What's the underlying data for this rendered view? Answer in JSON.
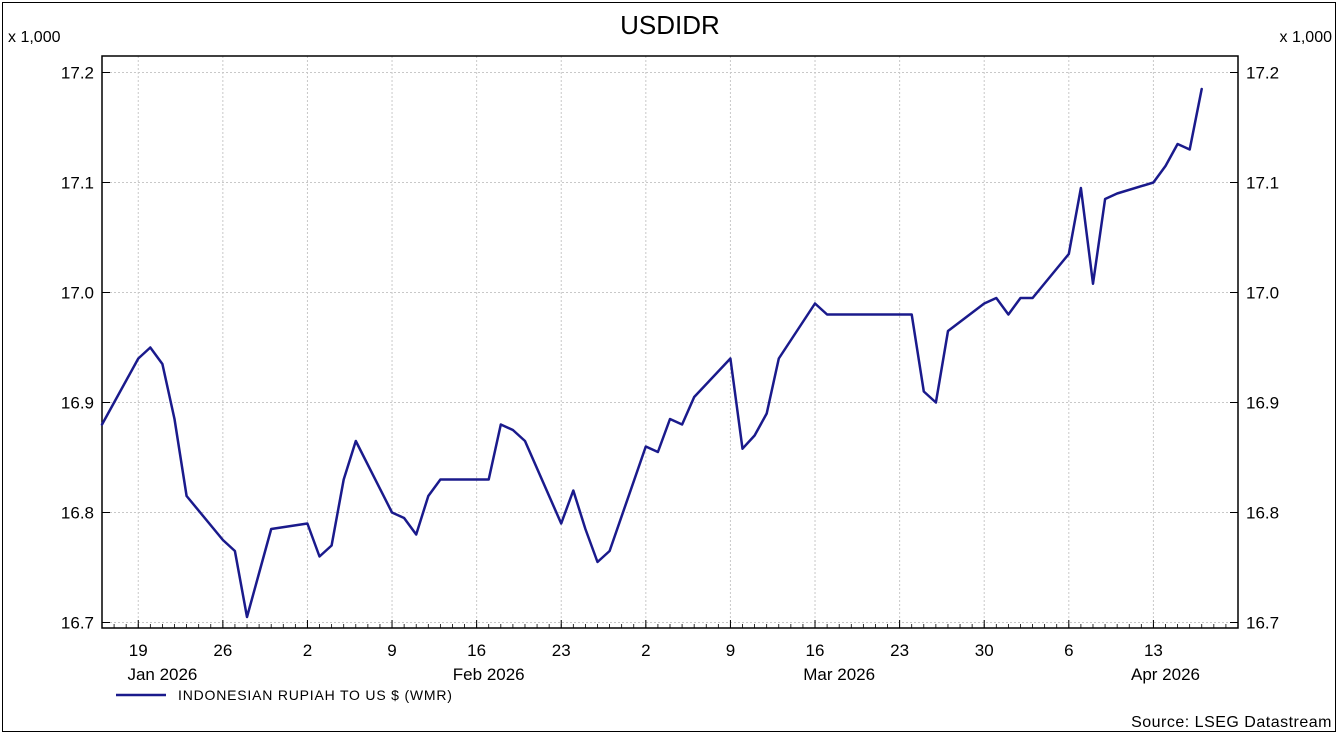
{
  "chart_data": {
    "type": "line",
    "title": "USDIDR",
    "y_multiplier_label": "x 1,000",
    "ylim": [
      16.695,
      17.215
    ],
    "y_ticks": [
      "16.7",
      "16.8",
      "16.9",
      "17.0",
      "17.1",
      "17.2"
    ],
    "x_range": [
      "2026-01-16",
      "2026-04-20"
    ],
    "x_ticks": [
      {
        "date": "2026-01-19",
        "label": "19"
      },
      {
        "date": "2026-01-26",
        "label": "26"
      },
      {
        "date": "2026-02-02",
        "label": "2"
      },
      {
        "date": "2026-02-09",
        "label": "9"
      },
      {
        "date": "2026-02-16",
        "label": "16"
      },
      {
        "date": "2026-02-23",
        "label": "23"
      },
      {
        "date": "2026-03-02",
        "label": "2"
      },
      {
        "date": "2026-03-09",
        "label": "9"
      },
      {
        "date": "2026-03-16",
        "label": "16"
      },
      {
        "date": "2026-03-23",
        "label": "23"
      },
      {
        "date": "2026-03-30",
        "label": "30"
      },
      {
        "date": "2026-04-06",
        "label": "6"
      },
      {
        "date": "2026-04-13",
        "label": "13"
      }
    ],
    "months": [
      {
        "date": "2026-01-21",
        "label": "Jan 2026"
      },
      {
        "date": "2026-02-17",
        "label": "Feb 2026"
      },
      {
        "date": "2026-03-18",
        "label": "Mar 2026"
      },
      {
        "date": "2026-04-14",
        "label": "Apr 2026"
      }
    ],
    "grid": true,
    "legend_position": "bottom-left",
    "series": [
      {
        "name": "INDONESIAN RUPIAH TO US $ (WMR)",
        "color": "#1a1a8c",
        "x": [
          "2026-01-16",
          "2026-01-19",
          "2026-01-20",
          "2026-01-21",
          "2026-01-22",
          "2026-01-23",
          "2026-01-26",
          "2026-01-27",
          "2026-01-28",
          "2026-01-29",
          "2026-01-30",
          "2026-02-02",
          "2026-02-03",
          "2026-02-04",
          "2026-02-05",
          "2026-02-06",
          "2026-02-09",
          "2026-02-10",
          "2026-02-11",
          "2026-02-12",
          "2026-02-13",
          "2026-02-16",
          "2026-02-17",
          "2026-02-18",
          "2026-02-19",
          "2026-02-20",
          "2026-02-23",
          "2026-02-24",
          "2026-02-25",
          "2026-02-26",
          "2026-02-27",
          "2026-03-02",
          "2026-03-03",
          "2026-03-04",
          "2026-03-05",
          "2026-03-06",
          "2026-03-09",
          "2026-03-10",
          "2026-03-11",
          "2026-03-12",
          "2026-03-13",
          "2026-03-16",
          "2026-03-17",
          "2026-03-18",
          "2026-03-19",
          "2026-03-20",
          "2026-03-23",
          "2026-03-24",
          "2026-03-25",
          "2026-03-26",
          "2026-03-27",
          "2026-03-30",
          "2026-03-31",
          "2026-04-01",
          "2026-04-02",
          "2026-04-03",
          "2026-04-06",
          "2026-04-07",
          "2026-04-08",
          "2026-04-09",
          "2026-04-10",
          "2026-04-13",
          "2026-04-14",
          "2026-04-15",
          "2026-04-16",
          "2026-04-17"
        ],
        "y": [
          16.88,
          16.94,
          16.95,
          16.935,
          16.885,
          16.815,
          16.775,
          16.765,
          16.705,
          16.745,
          16.785,
          16.79,
          16.76,
          16.77,
          16.83,
          16.865,
          16.8,
          16.795,
          16.78,
          16.815,
          16.83,
          16.83,
          16.83,
          16.88,
          16.875,
          16.865,
          16.79,
          16.82,
          16.785,
          16.755,
          16.765,
          16.86,
          16.855,
          16.885,
          16.88,
          16.905,
          16.94,
          16.858,
          16.87,
          16.89,
          16.94,
          16.99,
          16.98,
          16.98,
          16.98,
          16.98,
          16.98,
          16.98,
          16.91,
          16.9,
          16.965,
          16.99,
          16.995,
          16.98,
          16.995,
          16.995,
          17.035,
          17.095,
          17.008,
          17.085,
          17.09,
          17.1,
          17.115,
          17.135,
          17.13,
          17.185
        ]
      }
    ],
    "source": "Source: LSEG Datastream"
  }
}
